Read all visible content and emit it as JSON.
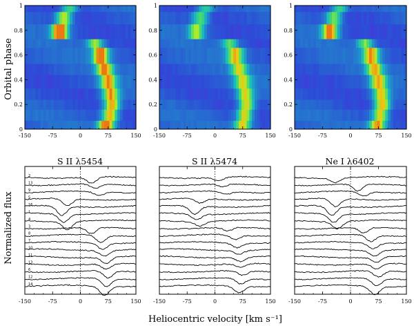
{
  "figure": {
    "y_label_top": "Orbital phase",
    "y_label_bottom": "Normalized flux",
    "x_label": "Heliocentric velocity [km s⁻¹]"
  },
  "chart_data": [
    {
      "type": "heatmap",
      "name": "dynamic-spectrum-1",
      "xlim": [
        -150,
        150
      ],
      "ylim": [
        0,
        1
      ],
      "xticks": [
        "-150",
        "-75",
        "0",
        "75",
        "150"
      ],
      "yticks": [
        "0",
        "0.2",
        "0.4",
        "0.6",
        "0.8",
        "1"
      ],
      "rows": [
        {
          "phase_range": [
            0.0,
            0.07
          ],
          "absorption_center": 70,
          "depth": 0.9
        },
        {
          "phase_range": [
            0.07,
            0.16
          ],
          "absorption_center": 80,
          "depth": 0.8
        },
        {
          "phase_range": [
            0.16,
            0.24
          ],
          "absorption_center": 85,
          "depth": 0.85
        },
        {
          "phase_range": [
            0.24,
            0.33
          ],
          "absorption_center": 82,
          "depth": 0.8
        },
        {
          "phase_range": [
            0.33,
            0.44
          ],
          "absorption_center": 75,
          "depth": 0.75
        },
        {
          "phase_range": [
            0.44,
            0.53
          ],
          "absorption_center": 65,
          "depth": 0.8
        },
        {
          "phase_range": [
            0.53,
            0.66
          ],
          "absorption_center": 55,
          "depth": 0.85
        },
        {
          "phase_range": [
            0.66,
            0.73
          ],
          "absorption_center": 40,
          "depth": 0.6
        },
        {
          "phase_range": [
            0.73,
            0.85
          ],
          "absorption_center": -55,
          "depth": 1.0
        },
        {
          "phase_range": [
            0.85,
            0.95
          ],
          "absorption_center": -45,
          "depth": 0.7
        },
        {
          "phase_range": [
            0.95,
            1.0
          ],
          "absorption_center": -30,
          "depth": 0.5
        }
      ]
    },
    {
      "type": "heatmap",
      "name": "dynamic-spectrum-2",
      "xlim": [
        -150,
        150
      ],
      "ylim": [
        0,
        1
      ],
      "xticks": [
        "-150",
        "-75",
        "0",
        "75",
        "150"
      ],
      "yticks": [
        "0",
        "0.2",
        "0.4",
        "0.6",
        "0.8",
        "1"
      ],
      "rows": [
        {
          "phase_range": [
            0.0,
            0.07
          ],
          "absorption_center": 75,
          "depth": 0.7
        },
        {
          "phase_range": [
            0.07,
            0.16
          ],
          "absorption_center": 80,
          "depth": 0.75
        },
        {
          "phase_range": [
            0.16,
            0.24
          ],
          "absorption_center": 85,
          "depth": 0.75
        },
        {
          "phase_range": [
            0.24,
            0.33
          ],
          "absorption_center": 82,
          "depth": 0.7
        },
        {
          "phase_range": [
            0.33,
            0.44
          ],
          "absorption_center": 75,
          "depth": 0.65
        },
        {
          "phase_range": [
            0.44,
            0.53
          ],
          "absorption_center": 65,
          "depth": 0.6
        },
        {
          "phase_range": [
            0.53,
            0.66
          ],
          "absorption_center": 55,
          "depth": 0.7
        },
        {
          "phase_range": [
            0.66,
            0.73
          ],
          "absorption_center": 40,
          "depth": 0.5
        },
        {
          "phase_range": [
            0.73,
            0.85
          ],
          "absorption_center": -50,
          "depth": 0.6
        },
        {
          "phase_range": [
            0.85,
            0.95
          ],
          "absorption_center": -40,
          "depth": 0.55
        },
        {
          "phase_range": [
            0.95,
            1.0
          ],
          "absorption_center": -25,
          "depth": 0.45
        }
      ]
    },
    {
      "type": "heatmap",
      "name": "dynamic-spectrum-3",
      "xlim": [
        -150,
        150
      ],
      "ylim": [
        0,
        1
      ],
      "xticks": [
        "-150",
        "-75",
        "0",
        "75",
        "150"
      ],
      "yticks": [
        "0",
        "0.2",
        "0.4",
        "0.6",
        "0.8",
        "1"
      ],
      "rows": [
        {
          "phase_range": [
            0.0,
            0.07
          ],
          "absorption_center": 72,
          "depth": 0.8
        },
        {
          "phase_range": [
            0.07,
            0.16
          ],
          "absorption_center": 80,
          "depth": 0.75
        },
        {
          "phase_range": [
            0.16,
            0.24
          ],
          "absorption_center": 85,
          "depth": 0.8
        },
        {
          "phase_range": [
            0.24,
            0.33
          ],
          "absorption_center": 82,
          "depth": 0.75
        },
        {
          "phase_range": [
            0.33,
            0.44
          ],
          "absorption_center": 75,
          "depth": 0.7
        },
        {
          "phase_range": [
            0.44,
            0.53
          ],
          "absorption_center": 65,
          "depth": 0.7
        },
        {
          "phase_range": [
            0.53,
            0.66
          ],
          "absorption_center": 55,
          "depth": 0.75
        },
        {
          "phase_range": [
            0.66,
            0.73
          ],
          "absorption_center": 40,
          "depth": 0.55
        },
        {
          "phase_range": [
            0.73,
            0.85
          ],
          "absorption_center": -55,
          "depth": 0.85
        },
        {
          "phase_range": [
            0.85,
            0.95
          ],
          "absorption_center": -45,
          "depth": 0.6
        },
        {
          "phase_range": [
            0.95,
            1.0
          ],
          "absorption_center": -30,
          "depth": 0.5
        }
      ]
    },
    {
      "type": "line",
      "name": "line-profiles-1",
      "title": "S II λ5454",
      "xlim": [
        -150,
        150
      ],
      "xticks": [
        "-150",
        "-75",
        "0",
        "75",
        "150"
      ],
      "reference_line_x": 0,
      "spectrum_labels": [
        "2",
        "13",
        "9",
        "5",
        "16",
        "1",
        "4",
        "3",
        "8",
        "7",
        "10",
        "11",
        "13",
        "6",
        "12",
        "14"
      ],
      "absorption_centers": [
        30,
        40,
        50,
        -35,
        -50,
        -45,
        -35,
        30,
        55,
        60,
        65,
        70,
        70,
        75,
        70,
        65
      ],
      "absorption_depths": [
        0.7,
        0.5,
        0.4,
        0.8,
        1.0,
        0.9,
        0.9,
        0.7,
        0.8,
        0.7,
        0.6,
        0.7,
        0.6,
        0.8,
        0.9,
        1.0
      ]
    },
    {
      "type": "line",
      "name": "line-profiles-2",
      "title": "S II λ5474",
      "xlim": [
        -150,
        150
      ],
      "xticks": [
        "-150",
        "-75",
        "0",
        "75",
        "150"
      ],
      "reference_line_x": 0,
      "absorption_centers": [
        10,
        20,
        30,
        -40,
        -55,
        -50,
        -40,
        35,
        55,
        60,
        65,
        70,
        70,
        75,
        70,
        65
      ],
      "absorption_depths": [
        0.4,
        0.3,
        0.3,
        0.5,
        0.9,
        0.6,
        0.5,
        0.4,
        0.5,
        0.5,
        0.4,
        0.5,
        0.4,
        0.5,
        0.6,
        0.7
      ]
    },
    {
      "type": "line",
      "name": "line-profiles-3",
      "title": "Ne I λ6402",
      "xlim": [
        -150,
        150
      ],
      "xticks": [
        "-150",
        "-75",
        "0",
        "75",
        "150"
      ],
      "reference_line_x": 0,
      "absorption_centers": [
        -40,
        20,
        35,
        -40,
        -50,
        -45,
        -35,
        35,
        55,
        60,
        65,
        70,
        70,
        75,
        70,
        65
      ],
      "absorption_depths": [
        0.5,
        0.8,
        0.5,
        0.9,
        1.0,
        0.9,
        0.8,
        0.6,
        0.7,
        0.6,
        0.6,
        0.6,
        0.6,
        0.7,
        0.8,
        0.9
      ]
    }
  ]
}
